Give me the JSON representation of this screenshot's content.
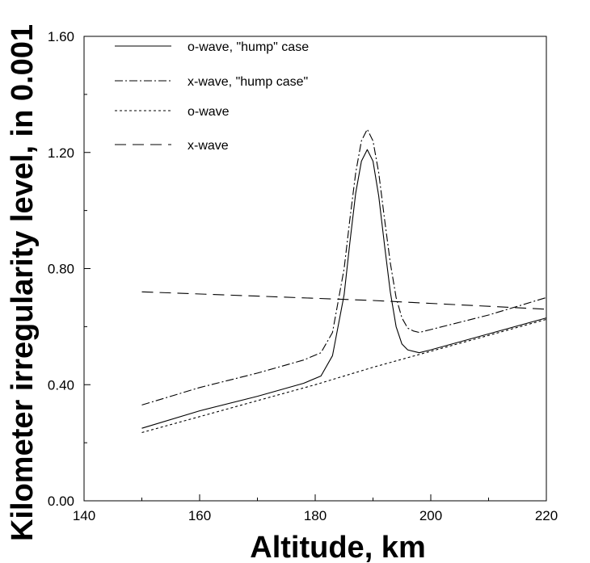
{
  "chart_data": {
    "type": "line",
    "title": "",
    "xlabel": "Altitude, km",
    "ylabel": "Kilometer irregularity level, in 0.001",
    "xlim": [
      140,
      220
    ],
    "ylim": [
      0.0,
      1.6
    ],
    "x_ticks": [
      140,
      160,
      180,
      200,
      220
    ],
    "x_tick_labels": [
      "140",
      "160",
      "180",
      "200",
      "220"
    ],
    "y_ticks": [
      0.0,
      0.4,
      0.8,
      1.2,
      1.6
    ],
    "y_tick_labels": [
      "0.00",
      "0.40",
      "0.80",
      "1.20",
      "1.60"
    ],
    "grid": false,
    "legend_position": "top-left",
    "series": [
      {
        "name": "o-wave, \"hump\" case",
        "style": "solid",
        "x": [
          150,
          160,
          170,
          178,
          181,
          183,
          185,
          186,
          187,
          188,
          189,
          190,
          191,
          192,
          193,
          194,
          195,
          196,
          198,
          200,
          210,
          220
        ],
        "values": [
          0.25,
          0.31,
          0.36,
          0.405,
          0.43,
          0.5,
          0.71,
          0.89,
          1.06,
          1.17,
          1.21,
          1.17,
          1.05,
          0.88,
          0.72,
          0.6,
          0.54,
          0.52,
          0.51,
          0.52,
          0.575,
          0.63
        ]
      },
      {
        "name": "x-wave, \"hump case\"",
        "style": "dashdot",
        "x": [
          150,
          160,
          170,
          178,
          181,
          183,
          185,
          186,
          187,
          188,
          189,
          190,
          191,
          192,
          193,
          194,
          195,
          196,
          197,
          198,
          200,
          210,
          220
        ],
        "values": [
          0.33,
          0.39,
          0.44,
          0.485,
          0.51,
          0.58,
          0.8,
          0.97,
          1.13,
          1.24,
          1.28,
          1.24,
          1.13,
          0.97,
          0.82,
          0.7,
          0.63,
          0.595,
          0.585,
          0.58,
          0.59,
          0.64,
          0.7
        ]
      },
      {
        "name": "o-wave",
        "style": "dotted",
        "x": [
          150,
          160,
          170,
          180,
          190,
          200,
          210,
          220
        ],
        "values": [
          0.235,
          0.29,
          0.345,
          0.4,
          0.46,
          0.515,
          0.57,
          0.625
        ]
      },
      {
        "name": "x-wave",
        "style": "dashed",
        "x": [
          150,
          170,
          190,
          210,
          220
        ],
        "values": [
          0.72,
          0.705,
          0.69,
          0.67,
          0.66
        ]
      }
    ]
  }
}
